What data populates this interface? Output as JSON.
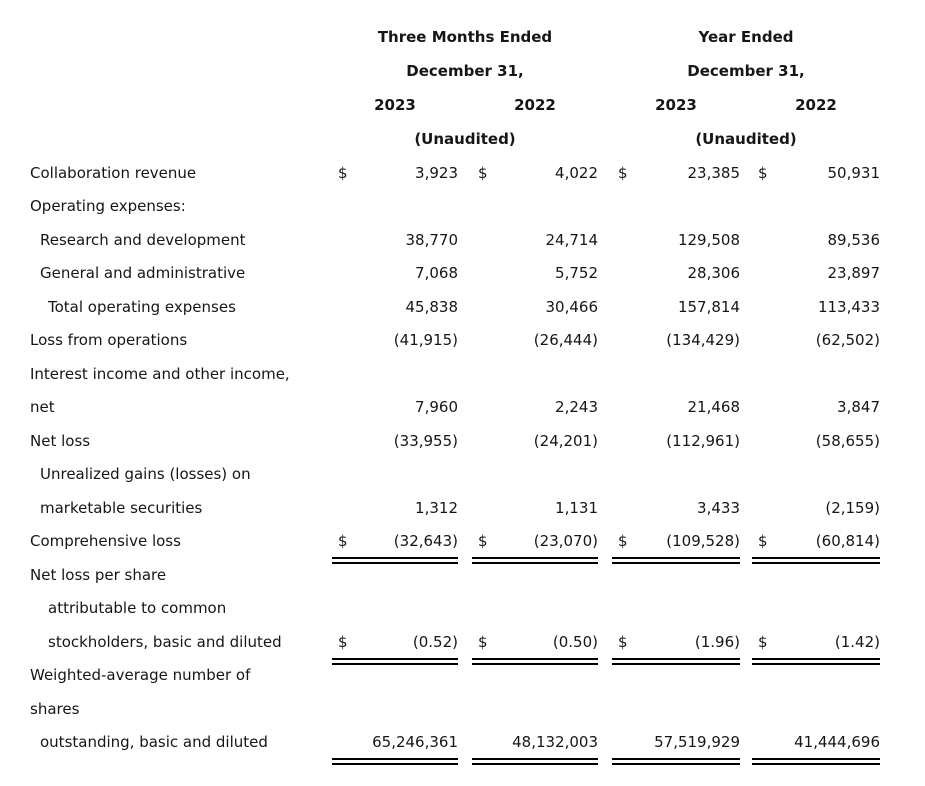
{
  "document": {
    "type": "condensed statements of operations and comprehensive loss",
    "colors": {
      "background": "#ffffff",
      "text": "#161616",
      "rule": "#000000"
    }
  },
  "table": {
    "header": {
      "groups": [
        {
          "title": "Three Months Ended",
          "subtitle": "December 31,",
          "years": [
            "2023",
            "2022"
          ],
          "note": "(Unaudited)"
        },
        {
          "title": "Year Ended",
          "subtitle": "December 31,",
          "years": [
            "2023",
            "2022"
          ],
          "note": "(Unaudited)"
        }
      ]
    },
    "rows": [
      {
        "label": "Collaboration revenue",
        "indent": 0,
        "cells": [
          {
            "d": "$",
            "v": "3,923"
          },
          {
            "d": "$",
            "v": "4,022"
          },
          {
            "d": "$",
            "v": "23,385"
          },
          {
            "d": "$",
            "v": "50,931"
          }
        ]
      },
      {
        "label": "Operating expenses:",
        "indent": 0,
        "cells": []
      },
      {
        "label": "Research and development",
        "indent": 1,
        "cells": [
          {
            "v": "38,770"
          },
          {
            "v": "24,714"
          },
          {
            "v": "129,508"
          },
          {
            "v": "89,536"
          }
        ]
      },
      {
        "label": "General and administrative",
        "indent": 1,
        "cells": [
          {
            "v": "7,068"
          },
          {
            "v": "5,752"
          },
          {
            "v": "28,306"
          },
          {
            "v": "23,897"
          }
        ]
      },
      {
        "label": "Total operating expenses",
        "indent": 2,
        "cells": [
          {
            "v": "45,838"
          },
          {
            "v": "30,466"
          },
          {
            "v": "157,814"
          },
          {
            "v": "113,433"
          }
        ]
      },
      {
        "label": "Loss from operations",
        "indent": 0,
        "cells": [
          {
            "v": "(41,915)"
          },
          {
            "v": "(26,444)"
          },
          {
            "v": "(134,429)"
          },
          {
            "v": "(62,502)"
          }
        ]
      },
      {
        "label": "Interest income and other income,",
        "indent": 0,
        "cells": []
      },
      {
        "label": "net",
        "indent": 0,
        "cells": [
          {
            "v": "7,960"
          },
          {
            "v": "2,243"
          },
          {
            "v": "21,468"
          },
          {
            "v": "3,847"
          }
        ]
      },
      {
        "label": "Net loss",
        "indent": 0,
        "cells": [
          {
            "v": "(33,955)"
          },
          {
            "v": "(24,201)"
          },
          {
            "v": "(112,961)"
          },
          {
            "v": "(58,655)"
          }
        ]
      },
      {
        "label": "Unrealized gains (losses) on",
        "indent": 1,
        "cells": []
      },
      {
        "label": "marketable securities",
        "indent": 1,
        "cells": [
          {
            "v": "1,312"
          },
          {
            "v": "1,131"
          },
          {
            "v": "3,433"
          },
          {
            "v": "(2,159)"
          }
        ]
      },
      {
        "label": "Comprehensive loss",
        "indent": 0,
        "underline": "double",
        "cells": [
          {
            "d": "$",
            "v": "(32,643)"
          },
          {
            "d": "$",
            "v": "(23,070)"
          },
          {
            "d": "$",
            "v": "(109,528)"
          },
          {
            "d": "$",
            "v": "(60,814)"
          }
        ]
      },
      {
        "label": "Net loss per share",
        "indent": 0,
        "cells": []
      },
      {
        "label": "attributable to common",
        "indent": 2,
        "cells": []
      },
      {
        "label": "stockholders, basic and diluted",
        "indent": 2,
        "underline": "double",
        "cells": [
          {
            "d": "$",
            "v": "(0.52)"
          },
          {
            "d": "$",
            "v": "(0.50)"
          },
          {
            "d": "$",
            "v": "(1.96)"
          },
          {
            "d": "$",
            "v": "(1.42)"
          }
        ]
      },
      {
        "label": "Weighted-average number of",
        "indent": 0,
        "cells": []
      },
      {
        "label": "shares",
        "indent": 0,
        "cells": []
      },
      {
        "label": "outstanding, basic and diluted",
        "indent": 1,
        "underline": "double",
        "cells": [
          {
            "v": "65,246,361"
          },
          {
            "v": "48,132,003"
          },
          {
            "v": "57,519,929"
          },
          {
            "v": "41,444,696"
          }
        ]
      }
    ]
  }
}
